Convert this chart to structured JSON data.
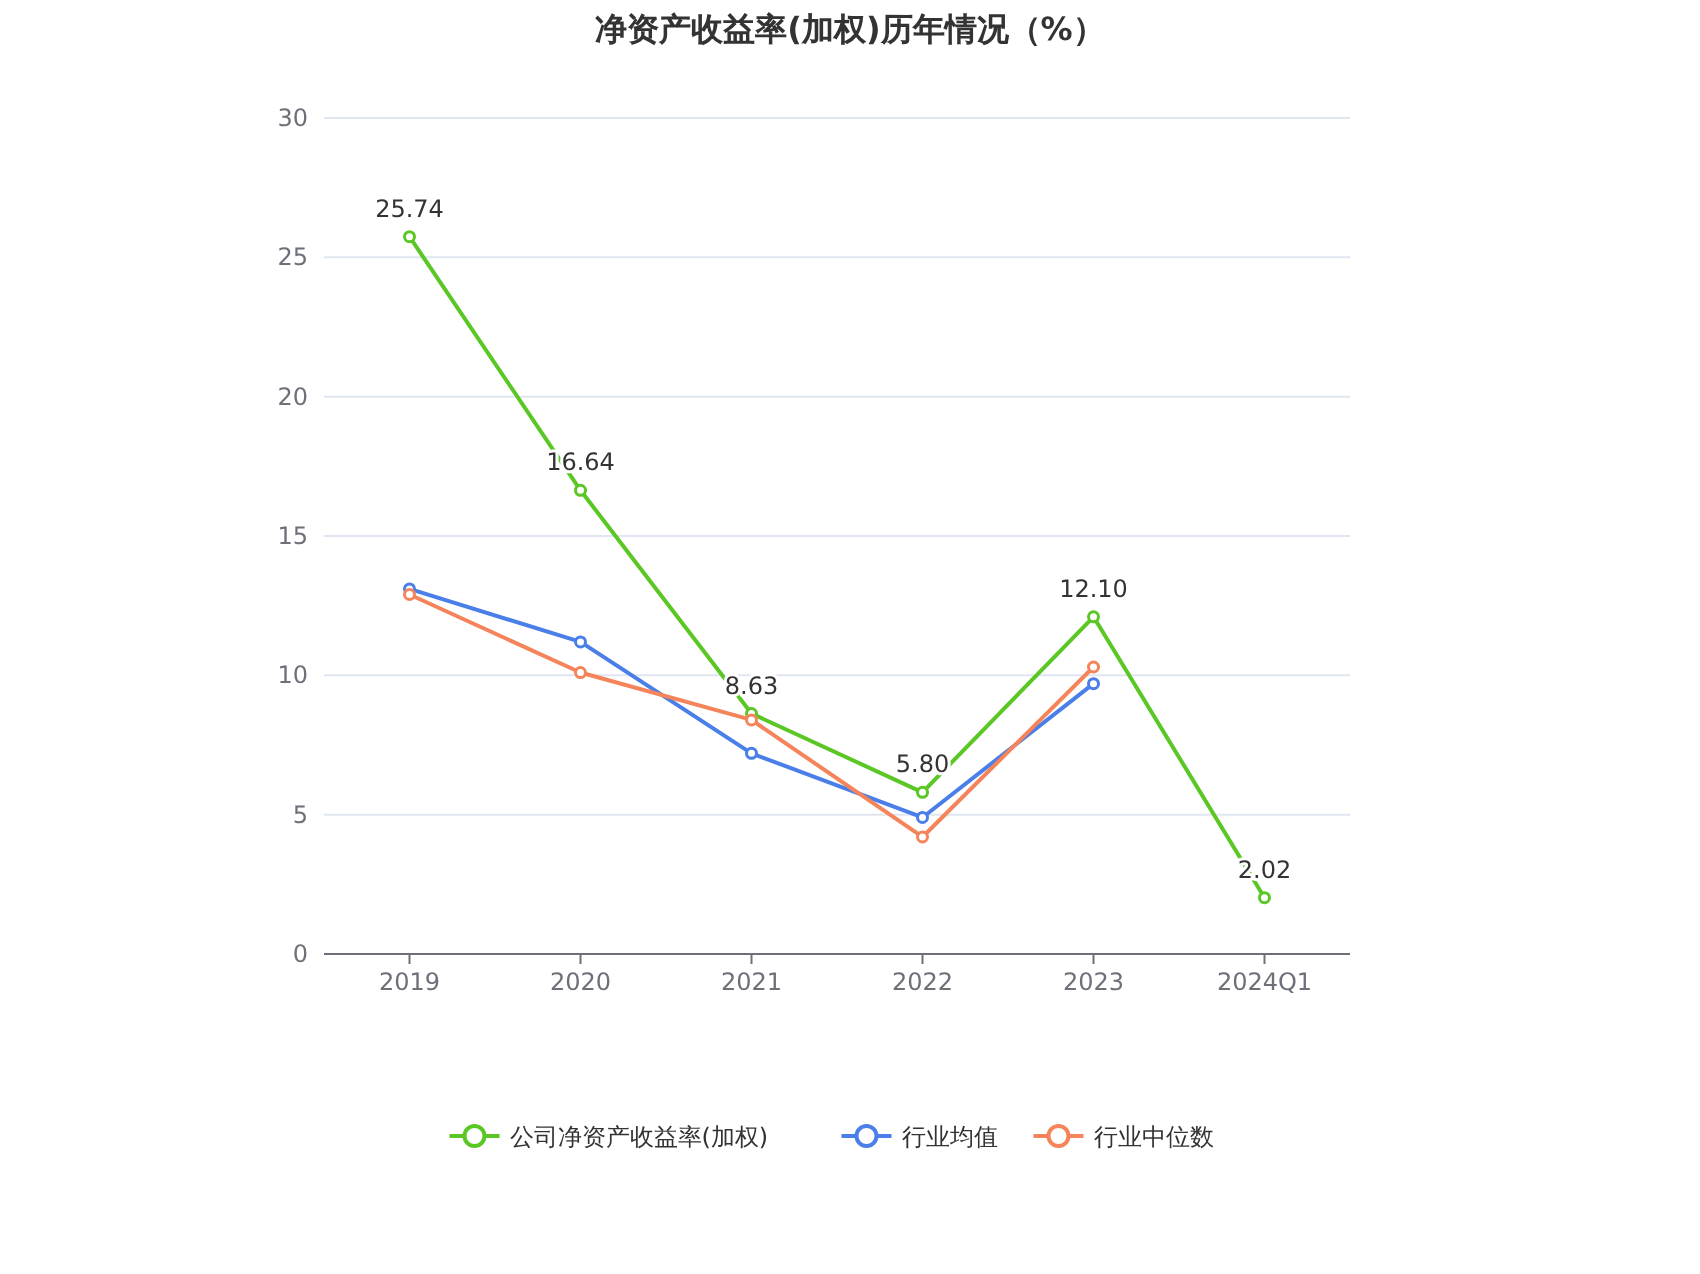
{
  "chart_data": {
    "type": "line",
    "title": "净资产收益率(加权)历年情况（%）",
    "categories": [
      "2019",
      "2020",
      "2021",
      "2022",
      "2023",
      "2024Q1"
    ],
    "series": [
      {
        "name": "公司净资产收益率(加权)",
        "color": "#5ac725",
        "values": [
          25.74,
          16.64,
          8.63,
          5.8,
          12.1,
          2.02
        ],
        "value_labels": [
          "25.74",
          "16.64",
          "8.63",
          "5.80",
          "12.10",
          "2.02"
        ]
      },
      {
        "name": "行业均值",
        "color": "#4a7ee8",
        "values": [
          13.1,
          11.2,
          7.2,
          4.9,
          9.7,
          null
        ]
      },
      {
        "name": "行业中位数",
        "color": "#f5845a",
        "values": [
          12.9,
          10.1,
          8.4,
          4.2,
          10.3,
          null
        ]
      }
    ],
    "ylim": [
      0,
      30
    ],
    "yticks": [
      0,
      5,
      10,
      15,
      20,
      25,
      30
    ],
    "grid": "y",
    "legend": "bottom",
    "marker": "circle",
    "line_style": "solid"
  }
}
